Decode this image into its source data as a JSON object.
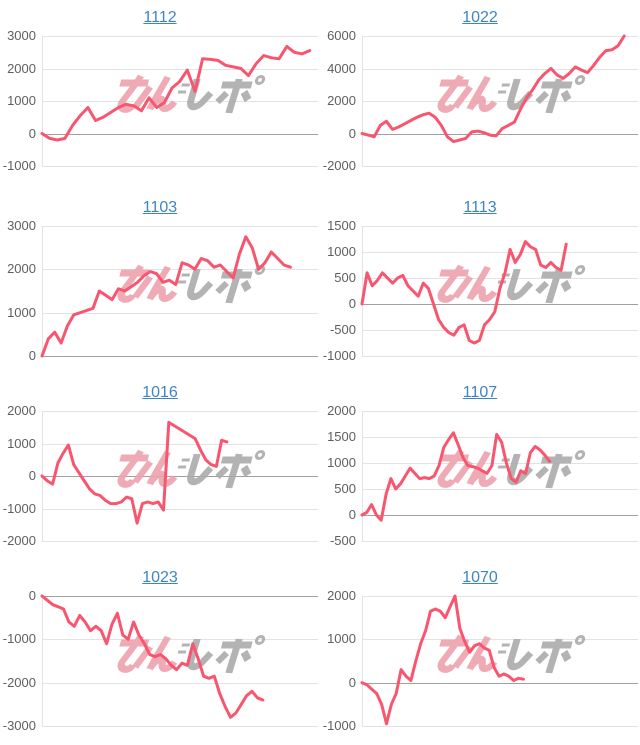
{
  "page": {
    "background": "#ffffff"
  },
  "palette": {
    "line": "#f8566f",
    "gridline": "#e3e3e3",
    "baseline": "#a0a0a0",
    "tick_label": "#5f5f5f",
    "title_link": "#3d85c6",
    "watermark_pink": "#eda3ad",
    "watermark_gray": "#ababab"
  },
  "watermark": {
    "text": "みんレポ"
  },
  "chart_data": [
    {
      "type": "line",
      "title": "1112",
      "xlabel": "",
      "ylabel": "",
      "yticks": [
        3000,
        2000,
        1000,
        0,
        -1000
      ],
      "ylim": [
        -1000,
        3000
      ],
      "grid": true,
      "legend": false,
      "x_end_frac": 0.97,
      "values": [
        0,
        -150,
        -200,
        -150,
        250,
        550,
        800,
        400,
        500,
        650,
        800,
        900,
        850,
        700,
        1100,
        800,
        950,
        1400,
        1600,
        1950,
        1300,
        2300,
        2280,
        2250,
        2100,
        2050,
        2000,
        1780,
        2150,
        2400,
        2330,
        2300,
        2680,
        2500,
        2450,
        2550
      ]
    },
    {
      "type": "line",
      "title": "1022",
      "xlabel": "",
      "ylabel": "",
      "yticks": [
        6000,
        4000,
        2000,
        0,
        -2000
      ],
      "ylim": [
        -2000,
        6000
      ],
      "grid": true,
      "legend": false,
      "x_end_frac": 0.95,
      "values": [
        0,
        -100,
        -200,
        500,
        750,
        250,
        400,
        600,
        800,
        1000,
        1150,
        1250,
        1000,
        500,
        -200,
        -500,
        -400,
        -300,
        100,
        150,
        50,
        -100,
        -150,
        300,
        500,
        700,
        1500,
        2200,
        2700,
        3300,
        3700,
        4000,
        3600,
        3400,
        3700,
        4100,
        3900,
        3750,
        4200,
        4700,
        5100,
        5150,
        5400,
        6000
      ]
    },
    {
      "type": "line",
      "title": "1103",
      "xlabel": "",
      "ylabel": "",
      "yticks": [
        3000,
        2000,
        1000,
        0
      ],
      "ylim": [
        0,
        3000
      ],
      "grid": true,
      "legend": false,
      "x_end_frac": 0.9,
      "values": [
        0,
        400,
        550,
        300,
        700,
        950,
        1000,
        1050,
        1100,
        1500,
        1400,
        1300,
        1550,
        1500,
        1600,
        1700,
        1850,
        1950,
        1900,
        1700,
        1750,
        1650,
        2150,
        2100,
        2000,
        2250,
        2200,
        2050,
        2100,
        1950,
        1800,
        2350,
        2750,
        2500,
        2000,
        2150,
        2400,
        2250,
        2100,
        2050
      ]
    },
    {
      "type": "line",
      "title": "1113",
      "xlabel": "",
      "ylabel": "",
      "yticks": [
        1500,
        1000,
        500,
        0,
        -500,
        -1000
      ],
      "ylim": [
        -1000,
        1500
      ],
      "grid": true,
      "legend": false,
      "x_end_frac": 0.74,
      "values": [
        0,
        600,
        350,
        450,
        600,
        500,
        400,
        500,
        550,
        350,
        250,
        150,
        400,
        300,
        0,
        -300,
        -450,
        -550,
        -600,
        -450,
        -400,
        -700,
        -750,
        -700,
        -400,
        -300,
        -150,
        300,
        600,
        1050,
        800,
        950,
        1200,
        1100,
        1050,
        750,
        700,
        800,
        700,
        650,
        1150
      ]
    },
    {
      "type": "line",
      "title": "1016",
      "xlabel": "",
      "ylabel": "",
      "yticks": [
        2000,
        1000,
        0,
        -1000,
        -2000
      ],
      "ylim": [
        -2000,
        2000
      ],
      "grid": true,
      "legend": false,
      "x_end_frac": 0.67,
      "values": [
        0,
        -150,
        -250,
        400,
        700,
        950,
        350,
        100,
        -150,
        -400,
        -550,
        -600,
        -750,
        -850,
        -850,
        -800,
        -650,
        -700,
        -1450,
        -850,
        -800,
        -850,
        -800,
        -1050,
        1650,
        1550,
        1450,
        1350,
        1250,
        1150,
        800,
        500,
        350,
        300,
        1100,
        1050
      ]
    },
    {
      "type": "line",
      "title": "1107",
      "xlabel": "",
      "ylabel": "",
      "yticks": [
        2000,
        1500,
        1000,
        500,
        0,
        -500
      ],
      "ylim": [
        -500,
        2000
      ],
      "grid": true,
      "legend": false,
      "x_end_frac": 0.68,
      "values": [
        0,
        50,
        200,
        0,
        -100,
        400,
        700,
        500,
        600,
        750,
        900,
        800,
        700,
        720,
        700,
        750,
        950,
        1300,
        1450,
        1580,
        1350,
        1100,
        950,
        930,
        900,
        850,
        800,
        950,
        1550,
        1400,
        1000,
        700,
        630,
        850,
        800,
        1200,
        1320,
        1250,
        1150,
        1030
      ]
    },
    {
      "type": "line",
      "title": "1023",
      "xlabel": "",
      "ylabel": "",
      "yticks": [
        0,
        -1000,
        -2000,
        -3000
      ],
      "ylim": [
        -3000,
        0
      ],
      "grid": true,
      "legend": false,
      "x_end_frac": 0.8,
      "values": [
        0,
        -100,
        -200,
        -250,
        -300,
        -600,
        -700,
        -450,
        -600,
        -800,
        -700,
        -800,
        -1100,
        -650,
        -400,
        -900,
        -1000,
        -600,
        -900,
        -1100,
        -1350,
        -1400,
        -1350,
        -1450,
        -1600,
        -1700,
        -1550,
        -1600,
        -1100,
        -1450,
        -1850,
        -1900,
        -1850,
        -2250,
        -2550,
        -2800,
        -2700,
        -2500,
        -2300,
        -2200,
        -2350,
        -2400
      ]
    },
    {
      "type": "line",
      "title": "1070",
      "xlabel": "",
      "ylabel": "",
      "yticks": [
        2000,
        1000,
        0,
        -1000
      ],
      "ylim": [
        -1000,
        2000
      ],
      "grid": true,
      "legend": false,
      "x_end_frac": 0.585,
      "values": [
        0,
        -50,
        -150,
        -250,
        -500,
        -950,
        -500,
        -250,
        300,
        150,
        50,
        500,
        900,
        1200,
        1650,
        1700,
        1650,
        1500,
        1750,
        2000,
        1250,
        950,
        700,
        850,
        900,
        800,
        750,
        350,
        150,
        200,
        150,
        50,
        100,
        80
      ]
    }
  ]
}
